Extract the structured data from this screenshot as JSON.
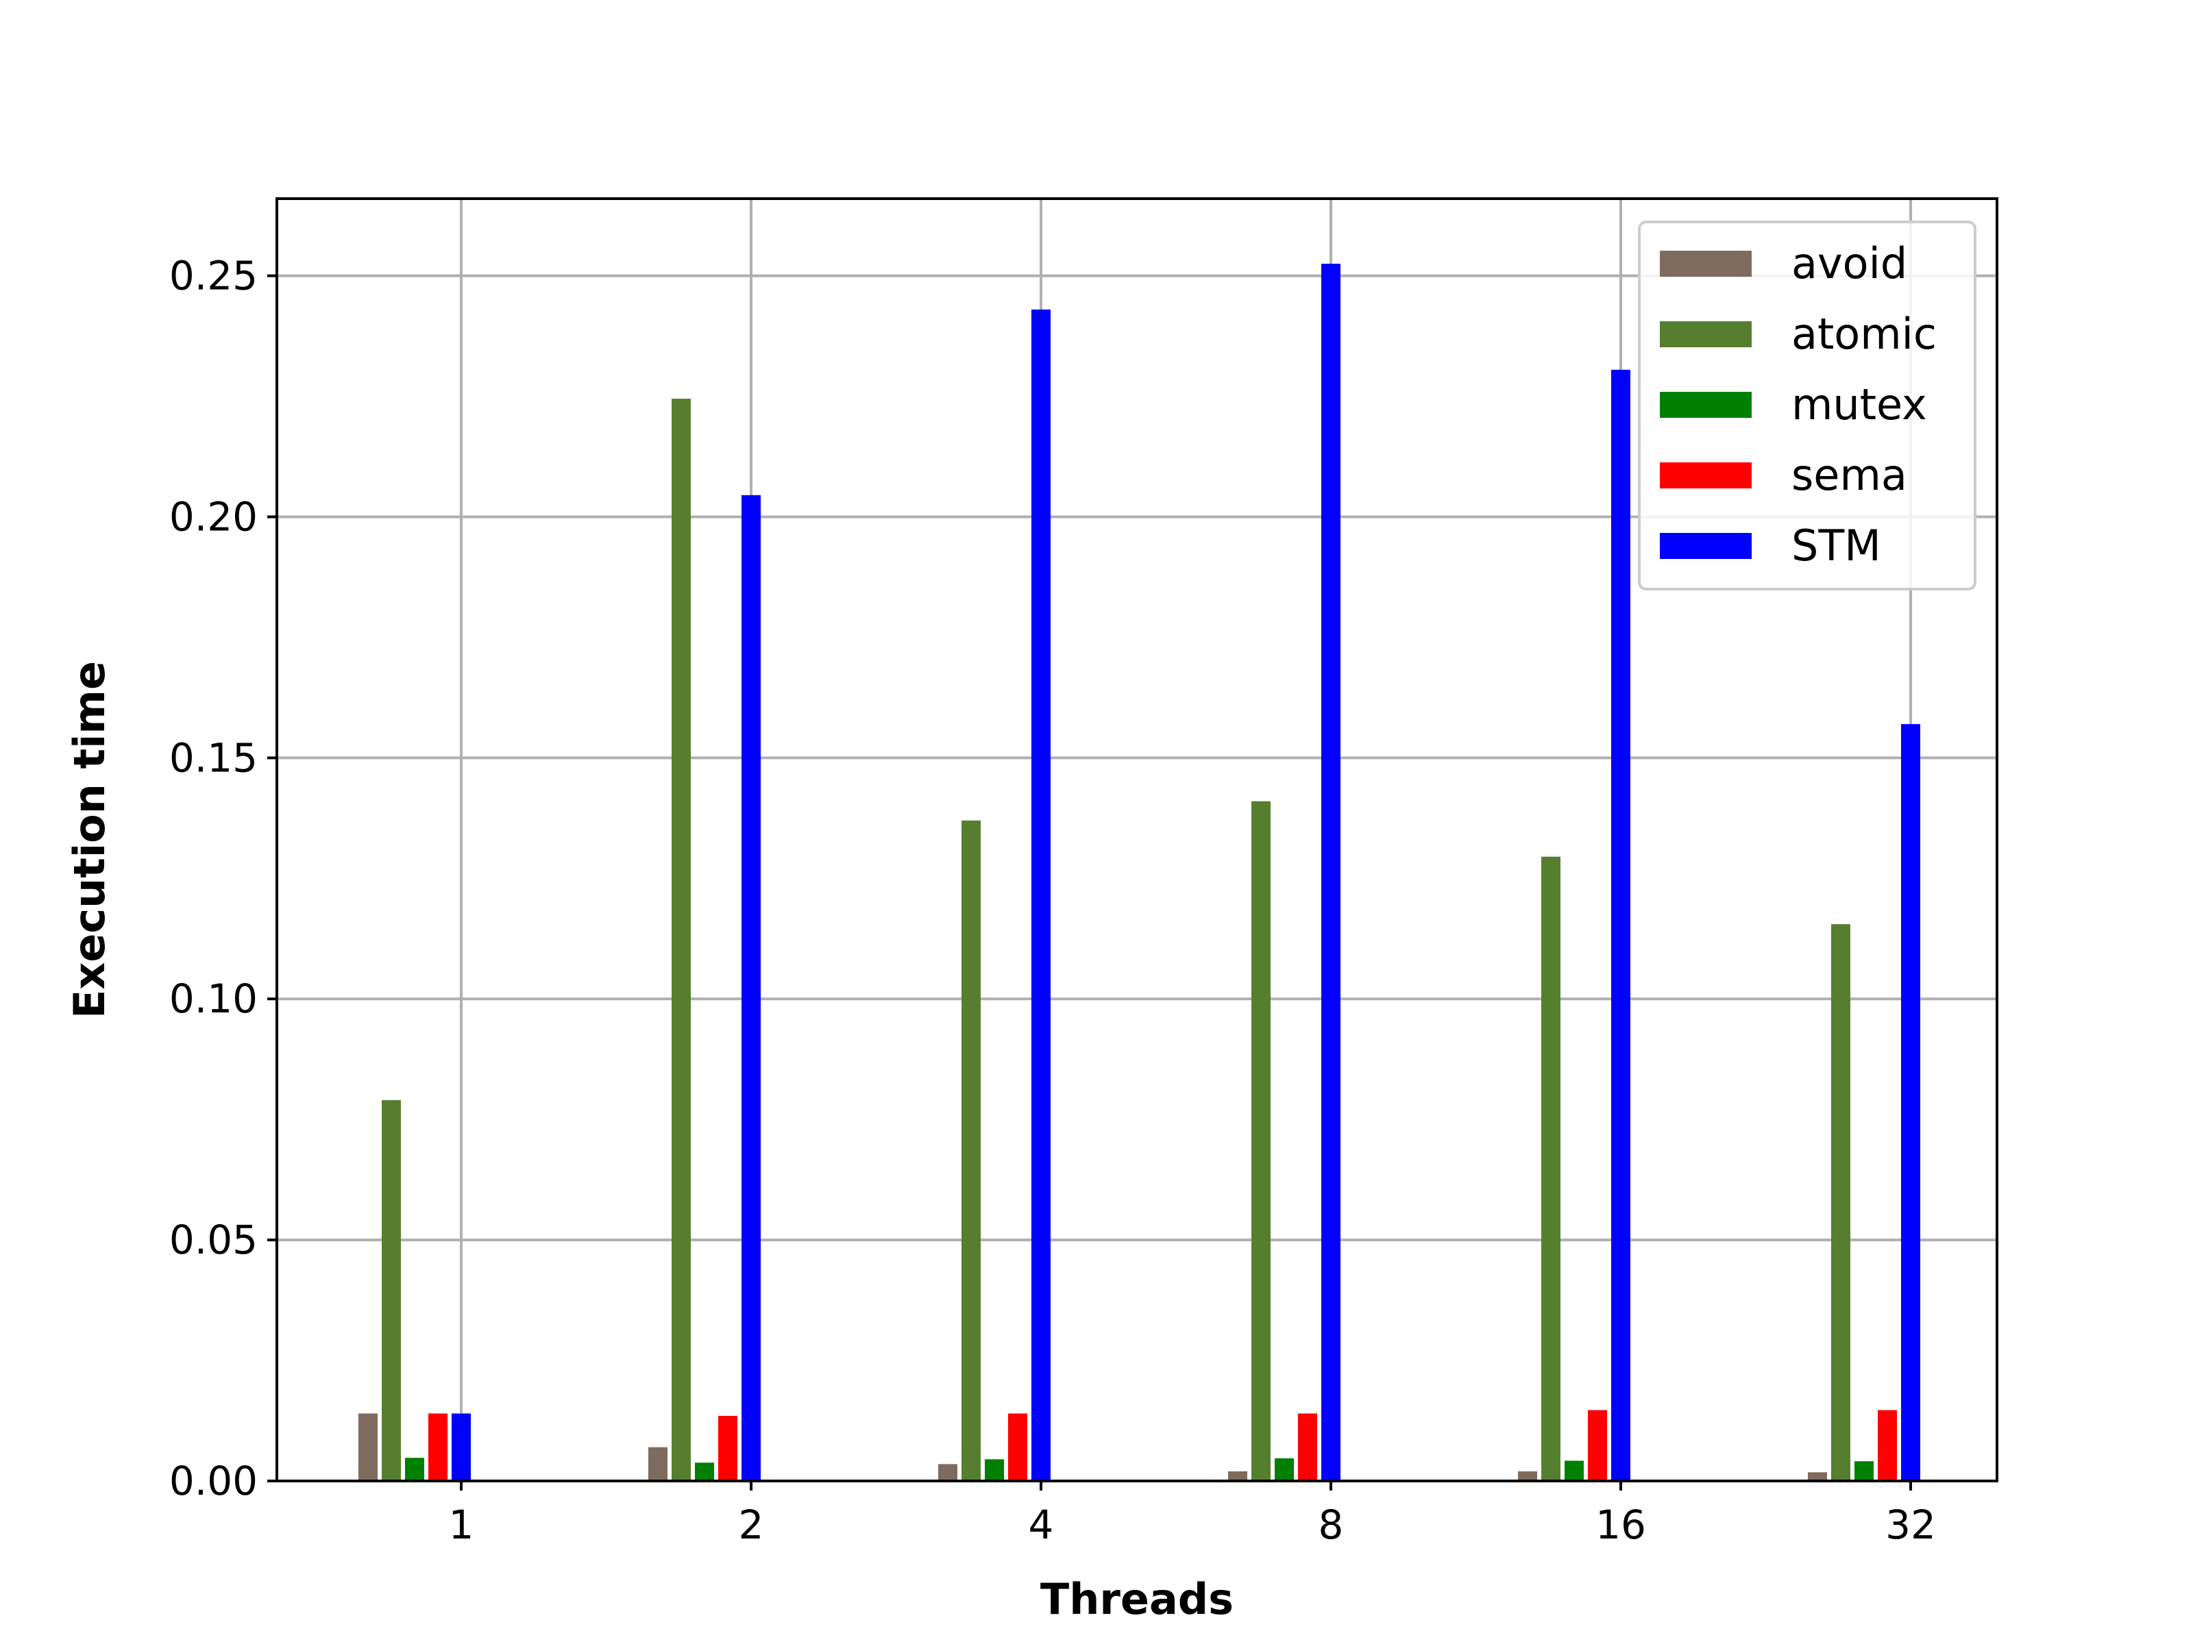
{
  "chart_data": {
    "type": "bar",
    "title": "",
    "xlabel": "Threads",
    "ylabel": "Execution time",
    "categories": [
      "1",
      "2",
      "4",
      "8",
      "16",
      "32"
    ],
    "ylim": [
      0,
      0.266
    ],
    "yticks": [
      "0.00",
      "0.05",
      "0.10",
      "0.15",
      "0.20",
      "0.25"
    ],
    "grid": true,
    "legend_position": "top-right",
    "series": [
      {
        "name": "avoid",
        "color": "#7f6b5d",
        "values": [
          0.014,
          0.007,
          0.0035,
          0.002,
          0.002,
          0.0018
        ]
      },
      {
        "name": "atomic",
        "color": "#557f2f",
        "values": [
          0.079,
          0.2245,
          0.137,
          0.141,
          0.1295,
          0.1155
        ]
      },
      {
        "name": "mutex",
        "color": "#008000",
        "values": [
          0.0048,
          0.0038,
          0.0045,
          0.0047,
          0.0042,
          0.0041
        ]
      },
      {
        "name": "sema",
        "color": "#ff0000",
        "values": [
          0.014,
          0.0135,
          0.014,
          0.014,
          0.0147,
          0.0147
        ]
      },
      {
        "name": "STM",
        "color": "#0000ff",
        "values": [
          0.014,
          0.2045,
          0.243,
          0.2525,
          0.2305,
          0.157
        ]
      }
    ]
  }
}
